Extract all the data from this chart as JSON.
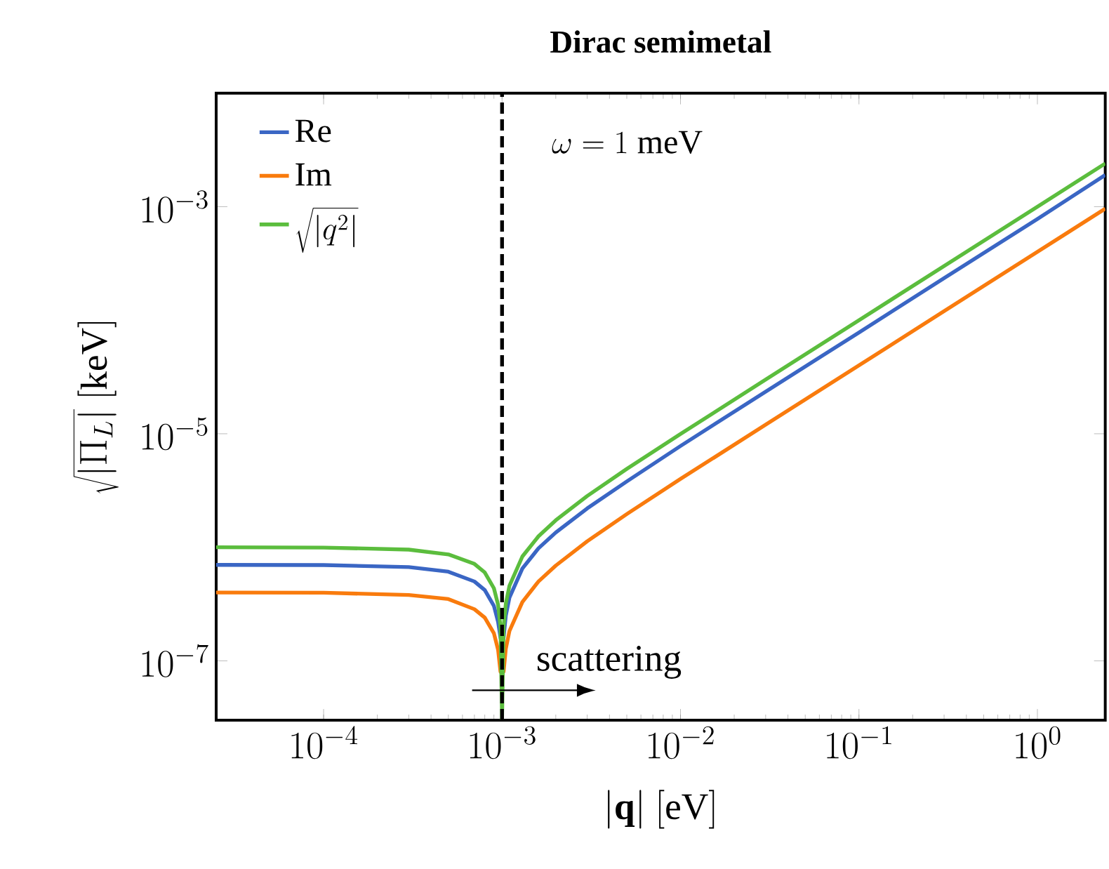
{
  "chart_data": {
    "type": "line",
    "title": "Dirac semimetal",
    "xlabel": "|\\mathbf{q}|\\ [\\mathrm{eV}]",
    "ylabel": "\\sqrt{|\\Pi_L|}\\ [\\mathrm{keV}]",
    "x": [
      2.5e-05,
      0.0001,
      0.0003,
      0.0005,
      0.0007,
      0.0008,
      0.0009,
      0.00095,
      0.00098,
      0.001,
      0.00102,
      0.00105,
      0.0011,
      0.0013,
      0.0016,
      0.002,
      0.003,
      0.005,
      0.01,
      0.03,
      0.1,
      0.3,
      1,
      2.4
    ],
    "series": [
      {
        "name": "\\mathrm{Re}",
        "color": "#3a66c4",
        "values": [
          7e-07,
          6.97e-07,
          6.7e-07,
          6.1e-07,
          5e-07,
          4.2e-07,
          3.05e-07,
          2.2e-07,
          1.6e-07,
          1.4e-07,
          1.6e-07,
          2.5e-07,
          3.6e-07,
          6.5e-07,
          9.8e-07,
          1.35e-06,
          2.2e-06,
          3.8e-06,
          7.8e-06,
          2.35e-05,
          7.8e-05,
          0.000235,
          0.00078,
          0.0019
        ]
      },
      {
        "name": "\\mathrm{Im}",
        "color": "#f97b0d",
        "values": [
          4e-07,
          3.98e-07,
          3.8e-07,
          3.5e-07,
          2.85e-07,
          2.4e-07,
          1.75e-07,
          1.25e-07,
          8e-08,
          null,
          8e-08,
          1.28e-07,
          1.83e-07,
          3.3e-07,
          5e-07,
          6.9e-07,
          1.13e-06,
          1.96e-06,
          4e-06,
          1.2e-05,
          4e-05,
          0.00012,
          0.0004,
          0.00096
        ]
      },
      {
        "name": "\\sqrt{|q^2|}",
        "color": "#5bbd3d",
        "values": [
          1e-06,
          9.95e-07,
          9.54e-07,
          8.66e-07,
          7.14e-07,
          6e-07,
          4.36e-07,
          3.12e-07,
          1.99e-07,
          3e-08,
          2.01e-07,
          3.2e-07,
          4.58e-07,
          8.3e-07,
          1.25e-06,
          1.73e-06,
          2.83e-06,
          4.9e-06,
          9.95e-06,
          3e-05,
          0.0001,
          0.0003,
          0.001,
          0.0024
        ]
      }
    ],
    "log": "xy",
    "legend": "top left",
    "marker": "none",
    "line_style": "solid",
    "xlim": [
      2.5e-05,
      2.4
    ],
    "ylim": [
      3e-08,
      0.01
    ],
    "xticks": [
      {
        "value": 0.0001,
        "label": "10^{-4}"
      },
      {
        "value": 0.001,
        "label": "10^{-3}"
      },
      {
        "value": 0.01,
        "label": "10^{-2}"
      },
      {
        "value": 0.1,
        "label": "10^{-1}"
      },
      {
        "value": 1,
        "label": "10^{0}"
      }
    ],
    "yticks": [
      {
        "value": 1e-07,
        "label": "10^{-7}"
      },
      {
        "value": 1e-05,
        "label": "10^{-5}"
      },
      {
        "value": 0.001,
        "label": "10^{-3}"
      }
    ],
    "ref_lines": [
      {
        "axis": "x",
        "value": 0.001,
        "color": "#000000",
        "line_style": "dashed"
      }
    ],
    "annotations": [
      "\\omega = 1\\ \\mathrm{meV}",
      {
        "text": "\\mathrm{scattering}",
        "x": 0.001,
        "y": 5.5e-08
      }
    ]
  }
}
